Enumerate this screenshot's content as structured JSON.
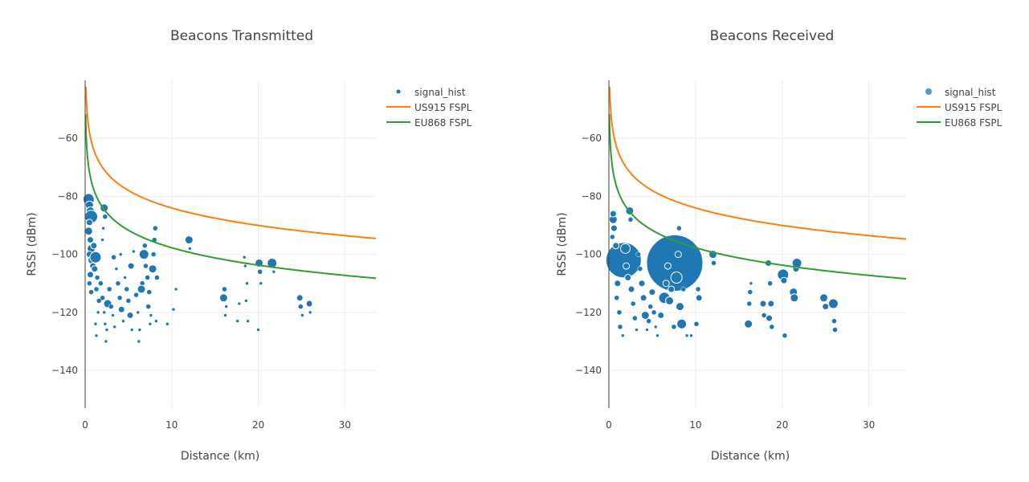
{
  "chart_data": [
    {
      "type": "scatter",
      "title": "Beacons Transmitted",
      "xlabel": "Distance (km)",
      "ylabel": "RSSI (dBm)",
      "xlim": [
        0,
        33.6
      ],
      "ylim": [
        -153,
        -40
      ],
      "x_ticks": [
        0,
        10,
        20,
        30
      ],
      "y_ticks": [
        -60,
        -80,
        -100,
        -120,
        -140
      ],
      "grid": true,
      "legend_position": "top-right",
      "legend": [
        "signal_hist",
        "US915 FSPL",
        "EU868 FSPL"
      ],
      "colors": {
        "scatter": "#1f77b4",
        "us915": "#ff7f0e",
        "eu868": "#2ca02c"
      },
      "fspl": {
        "us915_at_1km": -64,
        "eu868_at_1km": -77.7,
        "slope_db_per_decade": -20
      },
      "points": [
        [
          0.4,
          -81,
          7
        ],
        [
          0.5,
          -83,
          5
        ],
        [
          0.6,
          -85,
          5
        ],
        [
          0.7,
          -87,
          8
        ],
        [
          0.5,
          -89,
          4
        ],
        [
          0.4,
          -92,
          5
        ],
        [
          0.6,
          -95,
          4
        ],
        [
          0.7,
          -98,
          5
        ],
        [
          0.5,
          -100,
          4
        ],
        [
          0.8,
          -102,
          5
        ],
        [
          0.9,
          -104,
          4
        ],
        [
          0.6,
          -107,
          4
        ],
        [
          0.5,
          -110,
          3
        ],
        [
          0.7,
          -113,
          3
        ],
        [
          1.0,
          -97,
          4
        ],
        [
          1.2,
          -101,
          7
        ],
        [
          1.1,
          -105,
          4
        ],
        [
          1.4,
          -108,
          3
        ],
        [
          1.3,
          -112,
          3
        ],
        [
          1.6,
          -116,
          3
        ],
        [
          1.5,
          -120,
          2
        ],
        [
          1.2,
          -124,
          2
        ],
        [
          1.3,
          -128,
          2
        ],
        [
          1.8,
          -110,
          3
        ],
        [
          2.0,
          -115,
          3
        ],
        [
          2.2,
          -120,
          2
        ],
        [
          2.3,
          -124,
          2
        ],
        [
          2.5,
          -126,
          2
        ],
        [
          2.4,
          -130,
          2
        ],
        [
          2.2,
          -84,
          5
        ],
        [
          2.3,
          -87,
          3
        ],
        [
          2.1,
          -91,
          2
        ],
        [
          2.0,
          -95,
          2
        ],
        [
          2.6,
          -117,
          5
        ],
        [
          2.8,
          -112,
          3
        ],
        [
          3.0,
          -118,
          3
        ],
        [
          3.2,
          -121,
          2
        ],
        [
          3.4,
          -125,
          2
        ],
        [
          3.3,
          -101,
          3
        ],
        [
          3.6,
          -105,
          2
        ],
        [
          3.8,
          -110,
          3
        ],
        [
          4.0,
          -115,
          3
        ],
        [
          4.2,
          -119,
          4
        ],
        [
          4.4,
          -123,
          2
        ],
        [
          4.1,
          -100,
          2
        ],
        [
          4.6,
          -108,
          2
        ],
        [
          4.8,
          -112,
          3
        ],
        [
          5.0,
          -116,
          3
        ],
        [
          5.2,
          -121,
          4
        ],
        [
          5.4,
          -126,
          2
        ],
        [
          5.3,
          -104,
          4
        ],
        [
          5.6,
          -99,
          2
        ],
        [
          5.9,
          -114,
          3
        ],
        [
          6.1,
          -120,
          2
        ],
        [
          6.3,
          -126,
          2
        ],
        [
          6.2,
          -130,
          2
        ],
        [
          6.6,
          -110,
          3
        ],
        [
          6.5,
          -112,
          5
        ],
        [
          6.8,
          -100,
          6
        ],
        [
          6.9,
          -97,
          3
        ],
        [
          7.0,
          -104,
          3
        ],
        [
          7.2,
          -108,
          3
        ],
        [
          7.4,
          -113,
          3
        ],
        [
          7.3,
          -118,
          3
        ],
        [
          7.6,
          -121,
          2
        ],
        [
          7.5,
          -124,
          2
        ],
        [
          7.8,
          -105,
          5
        ],
        [
          7.9,
          -100,
          3
        ],
        [
          8.0,
          -95,
          3
        ],
        [
          8.1,
          -91,
          3
        ],
        [
          8.3,
          -108,
          3
        ],
        [
          8.2,
          -123,
          2
        ],
        [
          9.5,
          -124,
          2
        ],
        [
          10.5,
          -112,
          2
        ],
        [
          10.2,
          -119,
          2
        ],
        [
          12.0,
          -95,
          5
        ],
        [
          12.1,
          -98,
          2
        ],
        [
          16.0,
          -115,
          5
        ],
        [
          16.1,
          -112,
          3
        ],
        [
          16.3,
          -118,
          2
        ],
        [
          16.2,
          -121,
          2
        ],
        [
          17.8,
          -117,
          2
        ],
        [
          17.6,
          -123,
          2
        ],
        [
          18.4,
          -101,
          2
        ],
        [
          18.5,
          -104,
          2
        ],
        [
          18.7,
          -110,
          2
        ],
        [
          18.6,
          -116,
          2
        ],
        [
          18.8,
          -123,
          2
        ],
        [
          20.1,
          -103,
          5
        ],
        [
          20.2,
          -106,
          3
        ],
        [
          20.3,
          -110,
          2
        ],
        [
          20.0,
          -126,
          2
        ],
        [
          21.6,
          -103,
          6
        ],
        [
          21.8,
          -106,
          2
        ],
        [
          24.8,
          -115,
          4
        ],
        [
          24.9,
          -118,
          3
        ],
        [
          25.1,
          -121,
          2
        ],
        [
          25.9,
          -117,
          4
        ],
        [
          26.0,
          -120,
          2
        ]
      ]
    },
    {
      "type": "scatter",
      "title": "Beacons Received",
      "xlabel": "Distance (km)",
      "ylabel": "RSSI (dBm)",
      "xlim": [
        0,
        34.3
      ],
      "ylim": [
        -153,
        -40
      ],
      "x_ticks": [
        0,
        10,
        20,
        30
      ],
      "y_ticks": [
        -60,
        -80,
        -100,
        -120,
        -140
      ],
      "grid": true,
      "legend_position": "top-right",
      "legend": [
        "signal_hist",
        "US915 FSPL",
        "EU868 FSPL"
      ],
      "colors": {
        "scatter": "#1f77b4",
        "us915": "#ff7f0e",
        "eu868": "#2ca02c"
      },
      "fspl": {
        "us915_at_1km": -64,
        "eu868_at_1km": -77.7,
        "slope_db_per_decade": -20
      },
      "points": [
        [
          1.7,
          -102,
          22
        ],
        [
          7.6,
          -103,
          35
        ],
        [
          0.5,
          -88,
          5
        ],
        [
          0.6,
          -91,
          4
        ],
        [
          0.4,
          -94,
          3
        ],
        [
          0.5,
          -86,
          4
        ],
        [
          0.8,
          -97,
          4
        ],
        [
          1.0,
          -110,
          4
        ],
        [
          0.9,
          -115,
          3
        ],
        [
          1.2,
          -120,
          3
        ],
        [
          1.3,
          -125,
          3
        ],
        [
          1.6,
          -128,
          2
        ],
        [
          1.9,
          -98,
          6
        ],
        [
          2.0,
          -104,
          4
        ],
        [
          2.2,
          -108,
          4
        ],
        [
          2.4,
          -85,
          5
        ],
        [
          2.5,
          -88,
          3
        ],
        [
          2.6,
          -112,
          4
        ],
        [
          2.8,
          -117,
          3
        ],
        [
          3.0,
          -122,
          3
        ],
        [
          3.2,
          -126,
          2
        ],
        [
          3.4,
          -100,
          3
        ],
        [
          3.6,
          -105,
          3
        ],
        [
          3.8,
          -110,
          4
        ],
        [
          4.0,
          -115,
          4
        ],
        [
          4.2,
          -121,
          5
        ],
        [
          4.4,
          -126,
          2
        ],
        [
          4.6,
          -123,
          3
        ],
        [
          4.8,
          -118,
          3
        ],
        [
          5.0,
          -113,
          4
        ],
        [
          5.2,
          -120,
          3
        ],
        [
          5.4,
          -125,
          2
        ],
        [
          5.6,
          -128,
          2
        ],
        [
          6.0,
          -121,
          4
        ],
        [
          6.4,
          -115,
          7
        ],
        [
          6.6,
          -110,
          4
        ],
        [
          6.8,
          -104,
          4
        ],
        [
          7.0,
          -116,
          5
        ],
        [
          7.2,
          -112,
          4
        ],
        [
          7.5,
          -125,
          3
        ],
        [
          7.8,
          -108,
          7
        ],
        [
          8.0,
          -100,
          4
        ],
        [
          8.1,
          -91,
          3
        ],
        [
          8.2,
          -118,
          5
        ],
        [
          8.4,
          -124,
          6
        ],
        [
          8.6,
          -112,
          3
        ],
        [
          9.0,
          -128,
          2
        ],
        [
          9.5,
          -128,
          2
        ],
        [
          10.1,
          -124,
          3
        ],
        [
          10.4,
          -115,
          4
        ],
        [
          10.3,
          -112,
          3
        ],
        [
          12.0,
          -100,
          5
        ],
        [
          12.1,
          -103,
          3
        ],
        [
          16.1,
          -124,
          5
        ],
        [
          16.2,
          -117,
          3
        ],
        [
          16.3,
          -113,
          3
        ],
        [
          16.4,
          -110,
          2
        ],
        [
          17.8,
          -117,
          4
        ],
        [
          17.9,
          -121,
          3
        ],
        [
          18.4,
          -103,
          4
        ],
        [
          18.6,
          -110,
          3
        ],
        [
          18.7,
          -117,
          4
        ],
        [
          18.5,
          -122,
          4
        ],
        [
          18.8,
          -125,
          3
        ],
        [
          20.1,
          -107,
          7
        ],
        [
          20.2,
          -109,
          4
        ],
        [
          20.3,
          -128,
          3
        ],
        [
          21.3,
          -113,
          5
        ],
        [
          21.4,
          -115,
          5
        ],
        [
          21.6,
          -105,
          4
        ],
        [
          21.7,
          -103,
          6
        ],
        [
          24.8,
          -115,
          5
        ],
        [
          25.0,
          -118,
          4
        ],
        [
          25.9,
          -117,
          6
        ],
        [
          26.0,
          -123,
          3
        ],
        [
          26.1,
          -126,
          3
        ]
      ]
    }
  ]
}
